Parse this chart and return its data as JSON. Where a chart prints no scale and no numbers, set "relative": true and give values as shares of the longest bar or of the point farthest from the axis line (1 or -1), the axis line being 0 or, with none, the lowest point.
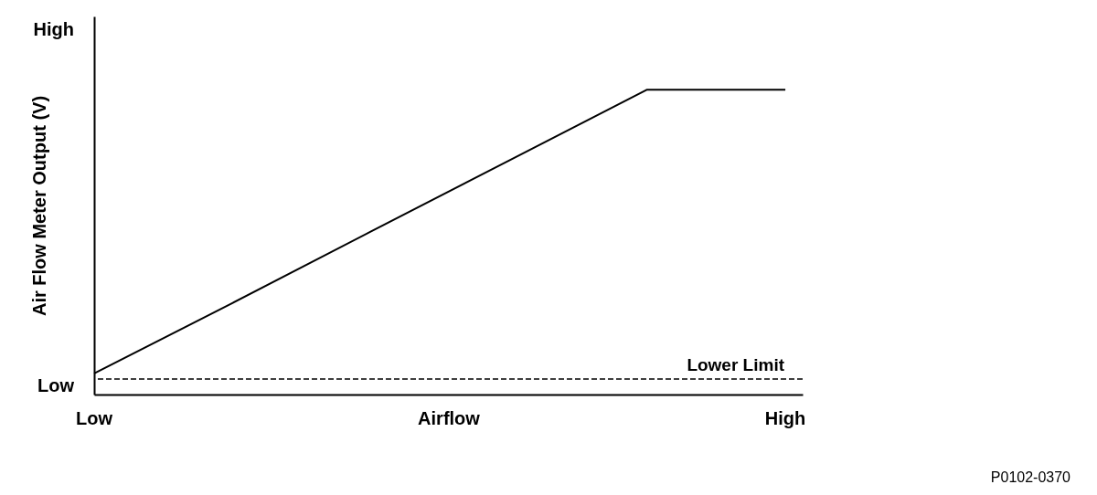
{
  "chart_data": {
    "type": "line",
    "xlabel": "Airflow",
    "ylabel": "Air Flow Meter Output (V)",
    "relative": true,
    "categories": [
      null,
      null,
      null,
      null,
      null,
      null
    ],
    "values": [
      0.069,
      0.3,
      0.534,
      0.767,
      1,
      1
    ],
    "color": "#000000",
    "line_style": "solid",
    "ref_lines": [
      {
        "axis": "y",
        "value": 0.051,
        "label": "Lower Limit",
        "line_style": "dashed",
        "color": "#000000"
      }
    ],
    "annotations": [
      "High",
      "Low",
      "Low",
      "High",
      "P0102-0370"
    ]
  }
}
